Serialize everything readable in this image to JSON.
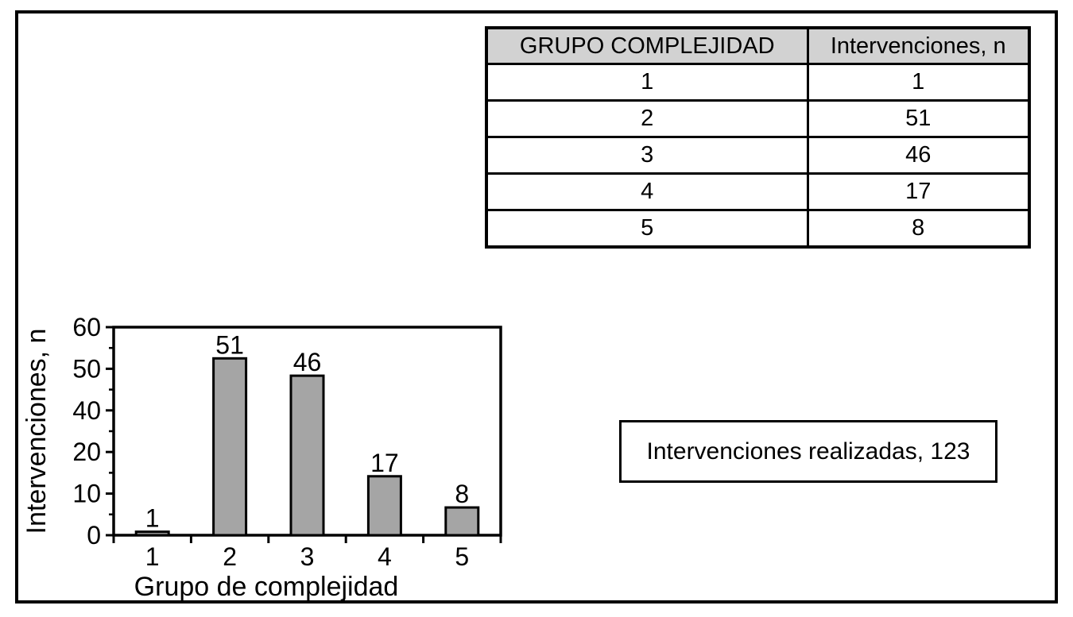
{
  "figure": {
    "table": {
      "headers": [
        "GRUPO COMPLEJIDAD",
        "Intervenciones, n"
      ],
      "rows": [
        [
          "1",
          "1"
        ],
        [
          "2",
          "51"
        ],
        [
          "3",
          "46"
        ],
        [
          "4",
          "17"
        ],
        [
          "5",
          "8"
        ]
      ]
    },
    "note_box": {
      "text": "Intervenciones realizadas, 123"
    },
    "colors": {
      "bar_fill": "#a5a5a5",
      "table_header_bg": "#d2d2d2",
      "border": "#000000",
      "background": "#ffffff"
    }
  },
  "chart_data": {
    "type": "bar",
    "title": "",
    "categories": [
      "1",
      "2",
      "3",
      "4",
      "5"
    ],
    "values": [
      1,
      51,
      46,
      17,
      8
    ],
    "bar_value_labels": [
      "1",
      "51",
      "46",
      "17",
      "8"
    ],
    "xlabel": "Grupo de complejidad",
    "ylabel": "Intervenciones, n",
    "ylim": [
      0,
      60
    ],
    "ytick_labels_displayed": [
      "60",
      "50",
      "40",
      "20",
      "10",
      "0"
    ],
    "legend": "none",
    "grid": false
  }
}
